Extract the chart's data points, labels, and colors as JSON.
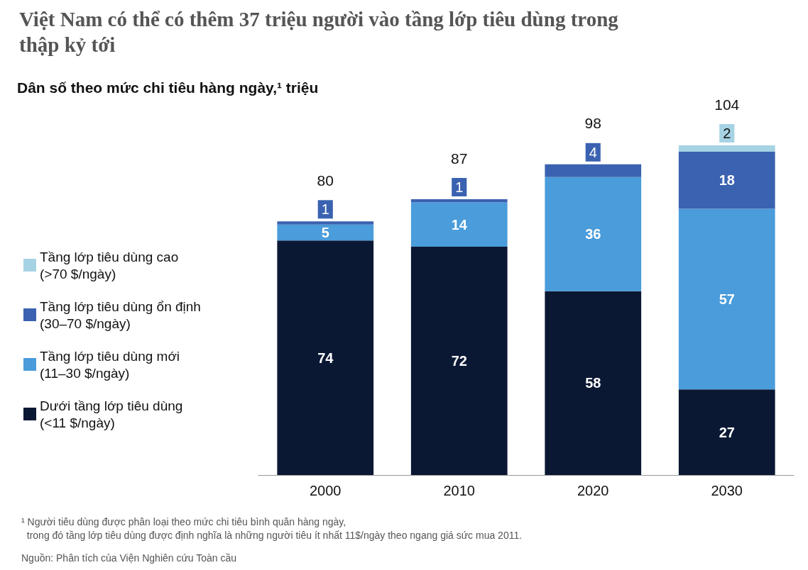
{
  "chart_data": {
    "type": "bar",
    "title": "Việt Nam có thể có thêm 37 triệu người vào tầng lớp tiêu dùng trong thập kỷ tới",
    "subtitle": "Dân số theo mức chi tiêu hàng ngày,¹ triệu",
    "categories": [
      "2000",
      "2010",
      "2020",
      "2030"
    ],
    "stacked": true,
    "data_labels": true,
    "legend": "left",
    "series": [
      {
        "name": "Dưới tầng lớp tiêu dùng\n(<11 $/ngày)",
        "color": "#0b1834",
        "values": [
          74,
          72,
          58,
          27
        ]
      },
      {
        "name": "Tầng lớp tiêu dùng mới\n(11–30 $/ngày)",
        "color": "#4a9cdb",
        "values": [
          5,
          14,
          36,
          57
        ]
      },
      {
        "name": "Tầng lớp tiêu dùng ổn định\n(30–70 $/ngày)",
        "color": "#3a62b0",
        "values": [
          1,
          1,
          4,
          18
        ]
      },
      {
        "name": "Tầng lớp tiêu dùng cao\n(>70 $/ngày)",
        "color": "#a6d3e4",
        "values": [
          null,
          null,
          null,
          2
        ]
      }
    ],
    "totals": [
      "80",
      "87",
      "98",
      "104"
    ],
    "annotations": [
      "¹ Người tiêu dùng được phân loại theo mức chi tiêu bình quân hàng ngày,\n  trong đó tầng lớp tiêu dùng được định nghĩa là những người tiêu ít nhất 11$/ngày theo ngang giá sức mua 2011.",
      "Nguồn: Phân tích của Viện Nghiên cứu Toàn cầu"
    ]
  }
}
